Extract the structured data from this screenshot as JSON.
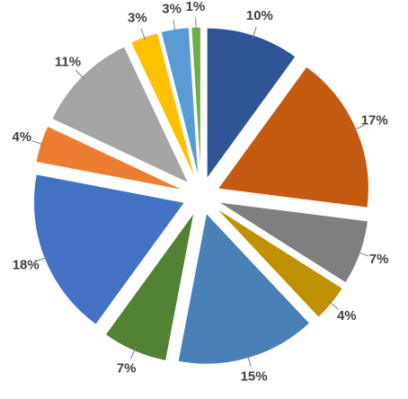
{
  "chart_data": {
    "type": "pie",
    "values": [
      10,
      17,
      7,
      4,
      15,
      7,
      18,
      4,
      11,
      3,
      3,
      1
    ],
    "value_labels": [
      "10%",
      "17%",
      "7%",
      "4%",
      "15%",
      "7%",
      "18%",
      "4%",
      "11%",
      "3%",
      "3%",
      "1%"
    ],
    "colors": [
      "#2f5597",
      "#c55a11",
      "#7f7f7f",
      "#bf9000",
      "#4a80b8",
      "#548235",
      "#4472c4",
      "#ed7d31",
      "#a5a5a5",
      "#ffc000",
      "#5b9bd5",
      "#70ad47"
    ]
  }
}
